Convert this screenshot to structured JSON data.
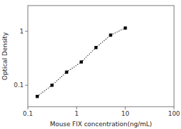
{
  "chart_data": {
    "type": "line",
    "x": [
      0.156,
      0.3125,
      0.625,
      1.25,
      2.5,
      5.0,
      10.0
    ],
    "values": [
      0.062,
      0.1,
      0.175,
      0.27,
      0.5,
      0.85,
      1.15
    ],
    "xlabel": "Mouse FIX concentration(ng/mL)",
    "ylabel": "Optical Density",
    "log": true,
    "xlim": [
      0.1,
      100
    ],
    "ylim": [
      0.04,
      3
    ],
    "xticks": [
      0.1,
      1,
      10,
      100
    ],
    "yticks": [
      0.1,
      1
    ],
    "color": "black",
    "marker": "square",
    "line_style": "dotted",
    "grid": false
  }
}
